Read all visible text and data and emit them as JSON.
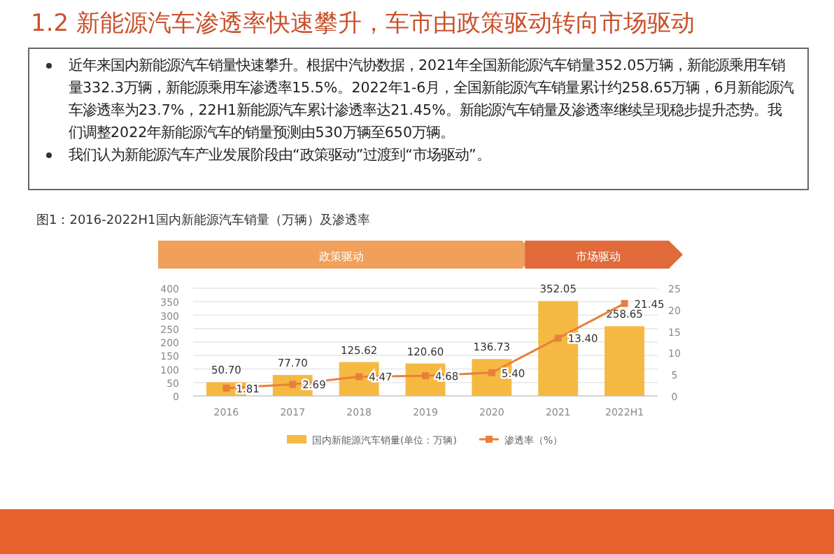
{
  "chart_data": {
    "type": "bar",
    "title": "1.2 新能源汽车渗透率快速攀升，车市由政策驱动转向市场驱动",
    "subtitle": "图1：2016-2022H1国内新能源汽车销量（万辆）及渗透率",
    "annotations": [
      "近年来国内新能源汽车销量快速攀升。根据中汽协数据，2021年全国新能源汽车销量352.05万辆，新能源乘用车销量332.3万辆，新能源乘用车渗透率15.5%。2022年1-6月，全国新能源汽车销量累计约258.65万辆，6月新能源汽车渗透率为23.7%，22H1新能源汽车累计渗透率达21.45%。新能源汽车销量及渗透率继续呈现稳步提升态势。我们调整2022年新能源汽车的销量预测由530万辆至650万辆。",
      "我们认为新能源汽车产业发展阶段由“政策驱动”过渡到“市场驱动”。",
      "政策驱动",
      "市场驱动"
    ],
    "categories": [
      "2016",
      "2017",
      "2018",
      "2019",
      "2020",
      "2021",
      "2022H1"
    ],
    "series": [
      {
        "name": "国内新能源汽车销量(单位：万辆)",
        "color": "#f5b942",
        "values": [
          50.7,
          77.7,
          125.62,
          120.6,
          136.73,
          352.05,
          258.65
        ],
        "value_labels": [
          "50.70",
          "77.70",
          "125.62",
          "120.60",
          "136.73",
          "352.05",
          "258.65"
        ]
      },
      {
        "name": "渗透率（%）",
        "type": "line",
        "axis": "y2",
        "color": "#e8803a",
        "marker": "square",
        "values": [
          1.81,
          2.69,
          4.47,
          4.68,
          5.4,
          13.4,
          21.45
        ],
        "value_labels": [
          "1.81",
          "2.69",
          "4.47",
          "4.68",
          "5.40",
          "13.40",
          "21.45"
        ]
      }
    ],
    "ylim": [
      0,
      400
    ],
    "yticks": [
      0,
      50,
      100,
      150,
      200,
      250,
      300,
      350,
      400
    ],
    "y2lim": [
      0,
      25
    ],
    "y2ticks": [
      0,
      5,
      10,
      15,
      20,
      25
    ],
    "grid": "y",
    "legend": "bottom"
  }
}
